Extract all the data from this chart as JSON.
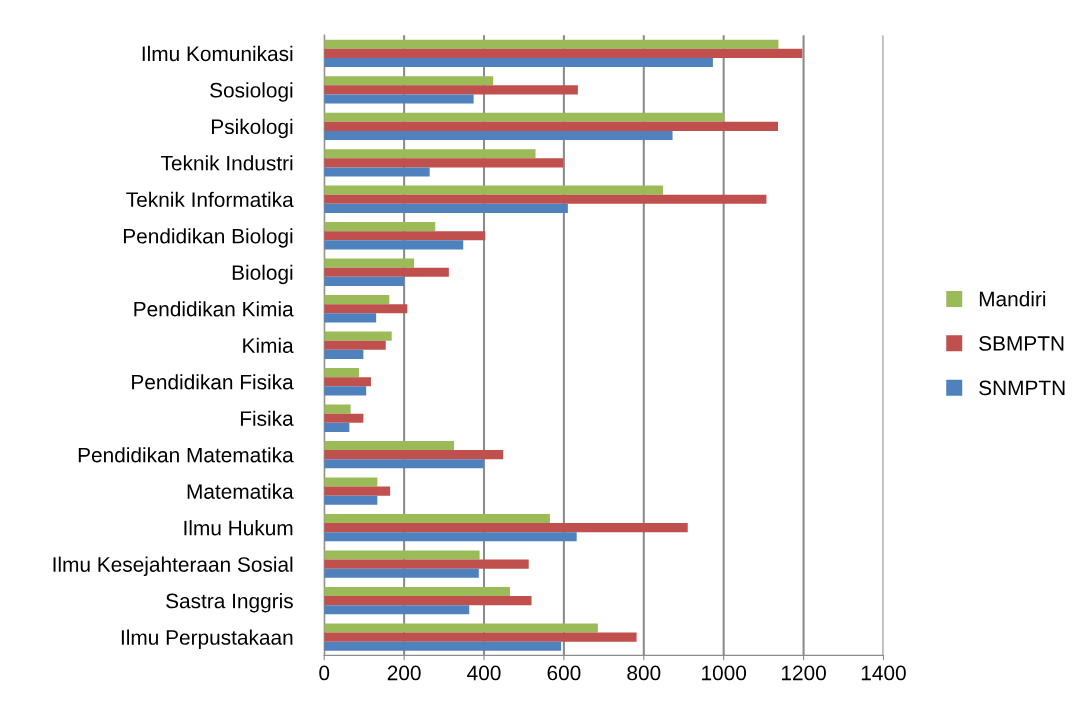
{
  "chart_data": {
    "type": "bar",
    "orientation": "horizontal",
    "categories": [
      "Ilmu Komunikasi",
      "Sosiologi",
      "Psikologi",
      "Teknik Industri",
      "Teknik Informatika",
      "Pendidikan Biologi",
      "Biologi",
      "Pendidikan Kimia",
      "Kimia",
      "Pendidikan Fisika",
      "Fisika",
      "Pendidikan Matematika",
      "Matematika",
      "Ilmu Hukum",
      "Ilmu Kesejahteraan Sosial",
      "Sastra Inggris",
      "Ilmu Perpustakaan"
    ],
    "series": [
      {
        "name": "Mandiri",
        "color": "#9bbb59",
        "values": [
          1137,
          423,
          1001,
          529,
          848,
          278,
          225,
          163,
          169,
          87,
          66,
          325,
          133,
          565,
          389,
          465,
          685
        ]
      },
      {
        "name": "SBMPTN",
        "color": "#c0504d",
        "values": [
          1197,
          635,
          1136,
          598,
          1107,
          403,
          312,
          208,
          154,
          117,
          98,
          448,
          165,
          910,
          512,
          519,
          782
        ]
      },
      {
        "name": "SNMPTN",
        "color": "#4f81bd",
        "values": [
          973,
          374,
          872,
          264,
          610,
          348,
          200,
          130,
          98,
          105,
          63,
          399,
          133,
          632,
          387,
          363,
          593
        ]
      }
    ],
    "xlim": [
      0,
      1400
    ],
    "xticks": [
      0,
      200,
      400,
      600,
      800,
      1000,
      1200,
      1400
    ],
    "grid": "x",
    "legend": "right"
  }
}
